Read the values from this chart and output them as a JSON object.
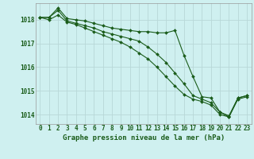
{
  "title": "Graphe pression niveau de la mer (hPa)",
  "background_color": "#cff0f0",
  "grid_color": "#b8d8d8",
  "line_color": "#1a5c1a",
  "marker": "D",
  "markersize": 2.0,
  "linewidth": 0.8,
  "xlim": [
    -0.5,
    23.5
  ],
  "ylim": [
    1013.6,
    1018.7
  ],
  "yticks": [
    1014,
    1015,
    1016,
    1017,
    1018
  ],
  "xticks": [
    0,
    1,
    2,
    3,
    4,
    5,
    6,
    7,
    8,
    9,
    10,
    11,
    12,
    13,
    14,
    15,
    16,
    17,
    18,
    19,
    20,
    21,
    22,
    23
  ],
  "series1": [
    1018.1,
    1018.1,
    1018.5,
    1018.05,
    1018.0,
    1017.95,
    1017.85,
    1017.75,
    1017.65,
    1017.6,
    1017.55,
    1017.5,
    1017.5,
    1017.45,
    1017.45,
    1017.55,
    1016.5,
    1015.6,
    1014.75,
    1014.7,
    1014.1,
    1013.9,
    1014.7,
    1014.8
  ],
  "series2": [
    1018.1,
    1018.1,
    1018.4,
    1017.95,
    1017.85,
    1017.75,
    1017.65,
    1017.5,
    1017.4,
    1017.3,
    1017.2,
    1017.1,
    1016.85,
    1016.55,
    1016.2,
    1015.75,
    1015.3,
    1014.8,
    1014.65,
    1014.5,
    1014.1,
    1013.95,
    1014.7,
    1014.8
  ],
  "series3": [
    1018.1,
    1018.0,
    1018.2,
    1017.9,
    1017.8,
    1017.65,
    1017.5,
    1017.35,
    1017.2,
    1017.05,
    1016.85,
    1016.6,
    1016.35,
    1016.0,
    1015.6,
    1015.2,
    1014.85,
    1014.65,
    1014.55,
    1014.4,
    1014.0,
    1013.9,
    1014.65,
    1014.75
  ],
  "tick_fontsize": 5.5,
  "label_fontsize": 6.5
}
